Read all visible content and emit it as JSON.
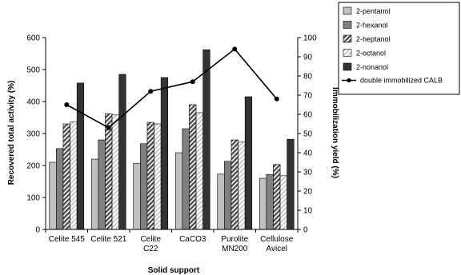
{
  "chart_data": {
    "type": "bar",
    "categories": [
      [
        "Celite 545"
      ],
      [
        "Celite 521"
      ],
      [
        "Celite",
        "C22"
      ],
      [
        "CaCO3"
      ],
      [
        "Purolite",
        "MN200"
      ],
      [
        "Cellulose",
        "Avicel"
      ]
    ],
    "series": [
      {
        "name": "2-pentanol",
        "values": [
          210,
          220,
          207,
          240,
          173,
          160
        ],
        "color": "#c0c0c0",
        "pattern": "solid"
      },
      {
        "name": "2-hexanol",
        "values": [
          253,
          280,
          268,
          315,
          213,
          172
        ],
        "color": "#808080",
        "pattern": "solid"
      },
      {
        "name": "2-heptanol",
        "values": [
          330,
          362,
          335,
          390,
          280,
          203
        ],
        "color": "#606060",
        "pattern": "hatch"
      },
      {
        "name": "2-octanol",
        "values": [
          337,
          358,
          330,
          365,
          273,
          168
        ],
        "color": "#ffffff",
        "pattern": "light-hatch"
      },
      {
        "name": "2-nonanol",
        "values": [
          458,
          485,
          475,
          562,
          415,
          282
        ],
        "color": "#333333",
        "pattern": "solid"
      }
    ],
    "line_series": {
      "name": "double immobilized CALB",
      "axis": "right",
      "values": [
        65,
        53,
        72,
        77,
        94,
        68
      ]
    },
    "xlabel": "Solid support",
    "ylabel": "Recovered total activity (%)",
    "y2label": "Immobilization yield (%)",
    "ylim": [
      0,
      600
    ],
    "yticks": [
      0,
      100,
      200,
      300,
      400,
      500,
      600
    ],
    "y2lim": [
      0,
      100
    ],
    "y2ticks": [
      0,
      10,
      20,
      30,
      40,
      50,
      60,
      70,
      80,
      90,
      100
    ],
    "grid": false,
    "legend_position": "top-right"
  }
}
